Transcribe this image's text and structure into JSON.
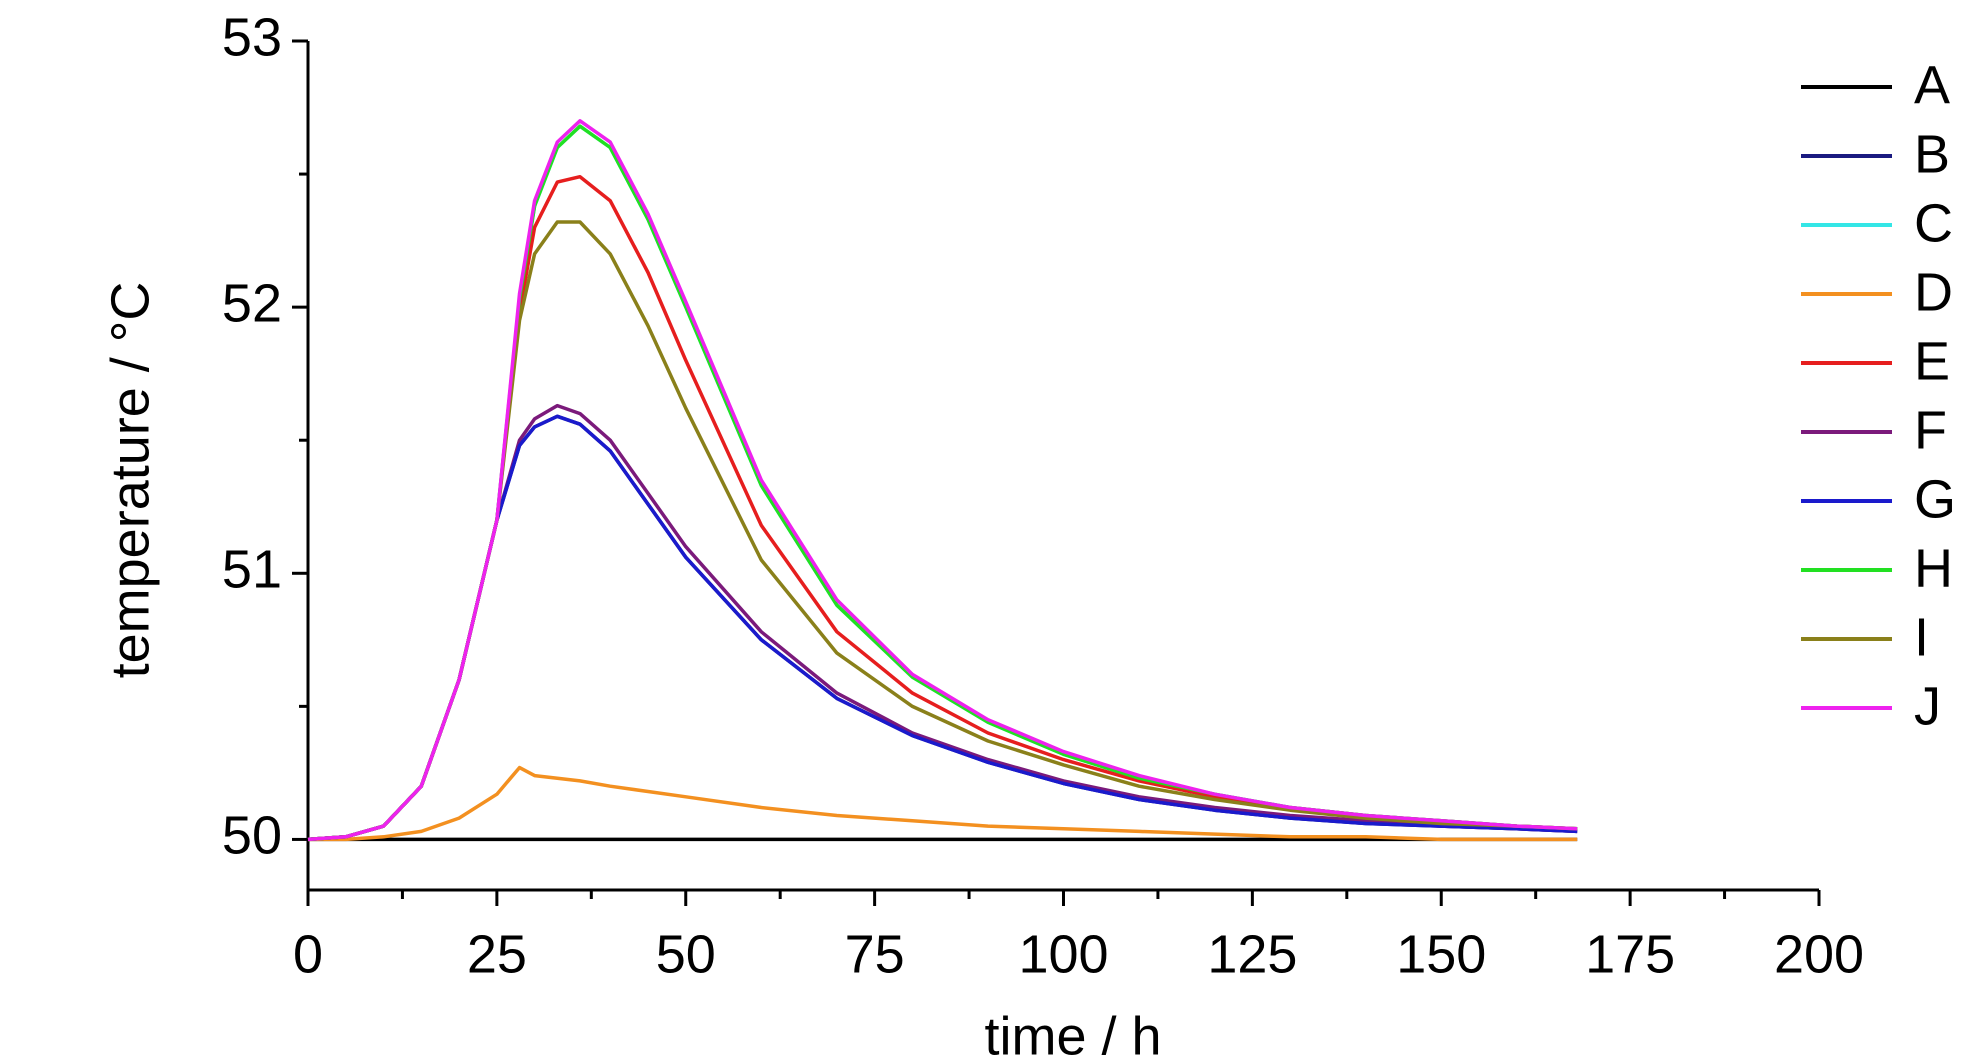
{
  "chart_data": {
    "type": "line",
    "xlabel": "time / h",
    "ylabel": "temperature / °C",
    "x": [
      0,
      5,
      10,
      15,
      20,
      25,
      28,
      30,
      33,
      36,
      40,
      45,
      50,
      60,
      70,
      80,
      90,
      100,
      110,
      120,
      130,
      140,
      150,
      160,
      168
    ],
    "series": [
      {
        "name": "A",
        "color": "#000000",
        "values": [
          50,
          50,
          50,
          50,
          50,
          50,
          50,
          50,
          50,
          50,
          50,
          50,
          50,
          50,
          50,
          50,
          50,
          50,
          50,
          50,
          50,
          50,
          50,
          50,
          50
        ]
      },
      {
        "name": "B",
        "color": "#1a1a80",
        "values": [
          50,
          50.01,
          50.05,
          50.2,
          50.6,
          51.2,
          51.48,
          51.55,
          51.59,
          51.56,
          51.46,
          51.26,
          51.06,
          50.75,
          50.53,
          50.39,
          50.29,
          50.21,
          50.15,
          50.11,
          50.08,
          50.06,
          50.05,
          50.04,
          50.03
        ]
      },
      {
        "name": "C",
        "color": "#33e6e6",
        "values": [
          50,
          50.01,
          50.05,
          50.2,
          50.6,
          51.2,
          52.03,
          52.38,
          52.6,
          52.68,
          52.6,
          52.33,
          52.0,
          51.33,
          50.88,
          50.61,
          50.44,
          50.32,
          50.23,
          50.17,
          50.12,
          50.09,
          50.07,
          50.05,
          50.04
        ]
      },
      {
        "name": "D",
        "color": "#f39020",
        "values": [
          50,
          50,
          50.01,
          50.03,
          50.08,
          50.17,
          50.27,
          50.24,
          50.23,
          50.22,
          50.2,
          50.18,
          50.16,
          50.12,
          50.09,
          50.07,
          50.05,
          50.04,
          50.03,
          50.02,
          50.01,
          50.01,
          50.0,
          50.0,
          50.0
        ]
      },
      {
        "name": "E",
        "color": "#e61e1e",
        "values": [
          50,
          50.01,
          50.05,
          50.2,
          50.6,
          51.2,
          51.98,
          52.3,
          52.47,
          52.49,
          52.4,
          52.13,
          51.8,
          51.18,
          50.78,
          50.55,
          50.4,
          50.3,
          50.22,
          50.16,
          50.12,
          50.09,
          50.07,
          50.05,
          50.04
        ]
      },
      {
        "name": "F",
        "color": "#7b1a7b",
        "values": [
          50,
          50.01,
          50.05,
          50.2,
          50.6,
          51.2,
          51.5,
          51.58,
          51.63,
          51.6,
          51.5,
          51.3,
          51.1,
          50.78,
          50.55,
          50.4,
          50.3,
          50.22,
          50.16,
          50.12,
          50.09,
          50.07,
          50.05,
          50.04,
          50.03
        ]
      },
      {
        "name": "G",
        "color": "#1a1acc",
        "values": [
          50,
          50.01,
          50.05,
          50.2,
          50.6,
          51.2,
          51.48,
          51.55,
          51.59,
          51.56,
          51.46,
          51.26,
          51.06,
          50.75,
          50.53,
          50.39,
          50.29,
          50.21,
          50.15,
          50.11,
          50.08,
          50.06,
          50.05,
          50.04,
          50.03
        ]
      },
      {
        "name": "H",
        "color": "#22e022",
        "values": [
          50,
          50.01,
          50.05,
          50.2,
          50.6,
          51.2,
          52.03,
          52.38,
          52.6,
          52.68,
          52.6,
          52.33,
          52.0,
          51.33,
          50.88,
          50.61,
          50.44,
          50.32,
          50.23,
          50.17,
          50.12,
          50.09,
          50.07,
          50.05,
          50.04
        ]
      },
      {
        "name": "I",
        "color": "#8a801a",
        "values": [
          50,
          50.01,
          50.05,
          50.2,
          50.6,
          51.2,
          51.95,
          52.2,
          52.32,
          52.32,
          52.2,
          51.93,
          51.62,
          51.05,
          50.7,
          50.5,
          50.37,
          50.28,
          50.2,
          50.15,
          50.11,
          50.08,
          50.06,
          50.05,
          50.04
        ]
      },
      {
        "name": "J",
        "color": "#ee22ee",
        "values": [
          50,
          50.01,
          50.05,
          50.2,
          50.6,
          51.2,
          52.05,
          52.4,
          52.62,
          52.7,
          52.62,
          52.35,
          52.02,
          51.35,
          50.9,
          50.62,
          50.45,
          50.33,
          50.24,
          50.17,
          50.12,
          50.09,
          50.07,
          50.05,
          50.04
        ]
      }
    ],
    "xlim": [
      0,
      200
    ],
    "xticks": [
      0,
      25,
      50,
      75,
      100,
      125,
      150,
      175,
      200
    ],
    "xminorticks": [
      12.5,
      37.5,
      62.5,
      87.5,
      112.5,
      137.5,
      162.5,
      187.5
    ],
    "ylim": [
      49.81,
      53
    ],
    "yticks": [
      50,
      51,
      52,
      53
    ],
    "yminorticks": [
      50.5,
      51.5,
      52.5
    ],
    "legend": "upper right",
    "grid": false
  }
}
